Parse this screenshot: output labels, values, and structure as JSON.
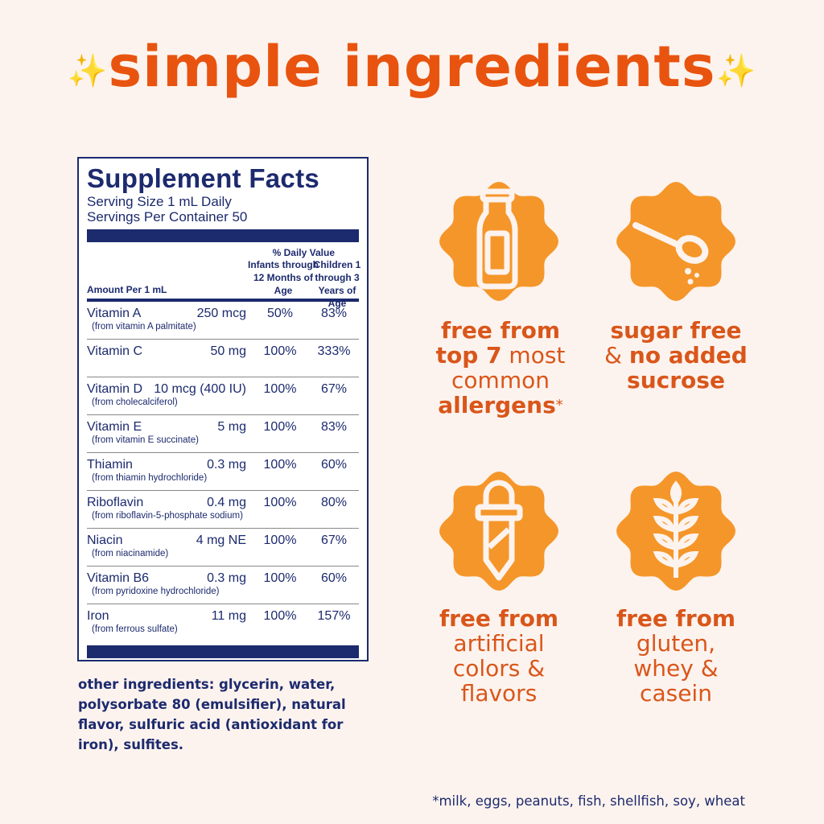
{
  "title": {
    "text": "simple ingredients",
    "sparkle": "✨"
  },
  "facts": {
    "heading": "Supplement Facts",
    "serving_size": "Serving Size 1 mL Daily",
    "servings_per_container": "Servings Per Container 50",
    "daily_value": "% Daily Value",
    "col_infants": "Infants through 12 Months of Age",
    "col_children": "Children 1 through 3 Years of Age",
    "amount_per": "Amount Per 1 mL",
    "rows": [
      {
        "name": "Vitamin A",
        "source": "(from vitamin A palmitate)",
        "amount": "250 mcg",
        "infants": "50%",
        "children": "83%"
      },
      {
        "name": "Vitamin C",
        "source": "",
        "amount": "50 mg",
        "infants": "100%",
        "children": "333%"
      },
      {
        "name": "Vitamin D",
        "source": "(from cholecalciferol)",
        "amount": "10 mcg (400 IU)",
        "infants": "100%",
        "children": "67%"
      },
      {
        "name": "Vitamin E",
        "source": "(from vitamin E succinate)",
        "amount": "5 mg",
        "infants": "100%",
        "children": "83%"
      },
      {
        "name": "Thiamin",
        "source": "(from thiamin hydrochloride)",
        "amount": "0.3 mg",
        "infants": "100%",
        "children": "60%"
      },
      {
        "name": "Riboflavin",
        "source": "(from riboflavin-5-phosphate sodium)",
        "amount": "0.4 mg",
        "infants": "100%",
        "children": "80%"
      },
      {
        "name": "Niacin",
        "source": "(from niacinamide)",
        "amount": "4 mg NE",
        "infants": "100%",
        "children": "67%"
      },
      {
        "name": "Vitamin B6",
        "source": "(from  pyridoxine hydrochloride)",
        "amount": "0.3 mg",
        "infants": "100%",
        "children": "60%"
      },
      {
        "name": "Iron",
        "source": "(from ferrous sulfate)",
        "amount": "11 mg",
        "infants": "100%",
        "children": "157%"
      }
    ]
  },
  "other_ingredients": "other ingredients: glycerin, water, polysorbate 80 (emulsifier), natural flavor, sulfuric acid (antioxidant for iron), sulfites.",
  "badges": [
    {
      "icon": "milk-bottle-icon",
      "parts": [
        "free from",
        "top 7",
        " most",
        "common",
        "allergens",
        "*"
      ]
    },
    {
      "icon": "spoon-icon",
      "parts": [
        "sugar free",
        "& ",
        "no added",
        "sucrose"
      ]
    },
    {
      "icon": "dropper-icon",
      "parts": [
        "free from",
        "artificial",
        "colors &",
        "flavors"
      ]
    },
    {
      "icon": "wheat-icon",
      "parts": [
        "free from",
        "gluten,",
        "whey &",
        "casein"
      ]
    }
  ],
  "footnote": "*milk, eggs, peanuts, fish, shellfish, soy, wheat",
  "colors": {
    "background": "#fdf3ee",
    "title": "#e8540f",
    "navy": "#1c2a6e",
    "badge": "#f5962a",
    "badge_text": "#d9561a"
  }
}
